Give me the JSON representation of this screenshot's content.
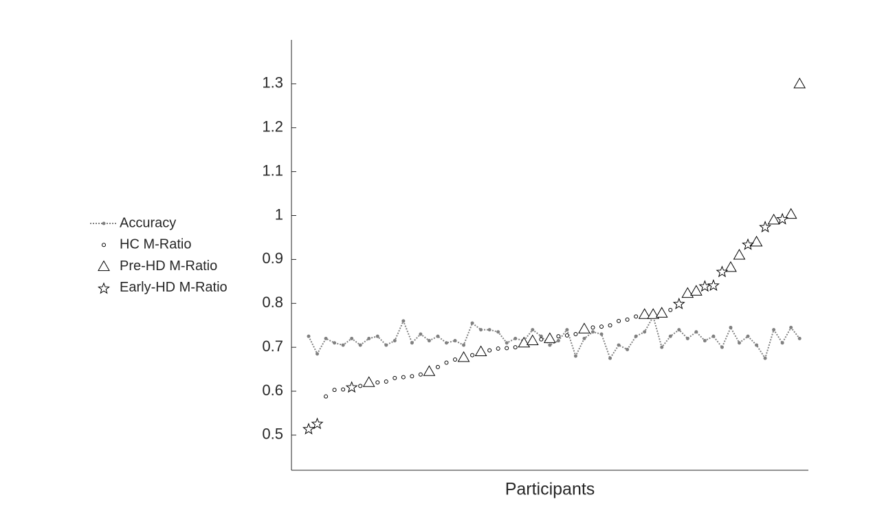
{
  "chart_data": {
    "type": "line",
    "xlabel": "Participants",
    "ylim": [
      0.42,
      1.4
    ],
    "yticks": [
      0.5,
      0.6,
      0.7,
      0.8,
      0.9,
      1,
      1.1,
      1.2,
      1.3
    ],
    "series": [
      {
        "name": "Accuracy",
        "color": "#808080",
        "marker": "dot",
        "line": "dotted",
        "values": [
          0.725,
          0.685,
          0.72,
          0.71,
          0.705,
          0.72,
          0.705,
          0.72,
          0.725,
          0.705,
          0.715,
          0.76,
          0.71,
          0.73,
          0.715,
          0.725,
          0.71,
          0.715,
          0.705,
          0.755,
          0.74,
          0.74,
          0.735,
          0.71,
          0.72,
          0.715,
          0.74,
          0.725,
          0.705,
          0.715,
          0.74,
          0.68,
          0.72,
          0.735,
          0.73,
          0.675,
          0.705,
          0.695,
          0.725,
          0.735,
          0.77,
          0.7,
          0.725,
          0.74,
          0.72,
          0.735,
          0.715,
          0.725,
          0.7,
          0.745,
          0.71,
          0.725,
          0.705,
          0.675,
          0.74,
          0.71,
          0.745,
          0.72
        ]
      },
      {
        "name": "HC M-Ratio",
        "color": "#000000",
        "marker": "circle",
        "line": "none",
        "values": [
          null,
          null,
          0.588,
          0.603,
          0.604,
          null,
          0.612,
          null,
          0.62,
          0.622,
          0.63,
          0.632,
          0.634,
          0.638,
          null,
          0.655,
          0.665,
          0.672,
          null,
          0.682,
          null,
          0.693,
          0.697,
          0.698,
          0.7,
          null,
          null,
          0.718,
          null,
          0.725,
          0.727,
          0.73,
          null,
          0.745,
          0.747,
          0.75,
          0.76,
          0.763,
          0.77,
          null,
          null,
          null,
          0.785,
          null,
          null,
          null,
          null,
          null,
          null,
          null,
          null,
          null,
          null,
          null,
          null,
          null,
          null,
          null
        ]
      },
      {
        "name": "Pre-HD M-Ratio",
        "color": "#000000",
        "marker": "triangle",
        "line": "none",
        "values": [
          null,
          null,
          null,
          null,
          null,
          null,
          null,
          0.62,
          null,
          null,
          null,
          null,
          null,
          null,
          0.645,
          null,
          null,
          null,
          0.677,
          null,
          0.69,
          null,
          null,
          null,
          null,
          0.71,
          0.715,
          null,
          0.72,
          null,
          null,
          null,
          0.742,
          null,
          null,
          null,
          null,
          null,
          null,
          0.775,
          0.775,
          0.778,
          null,
          null,
          0.823,
          0.828,
          null,
          null,
          null,
          0.882,
          0.91,
          null,
          0.94,
          null,
          0.99,
          null,
          1.003,
          1.3
        ]
      },
      {
        "name": "Early-HD M-Ratio",
        "color": "#000000",
        "marker": "star",
        "line": "none",
        "values": [
          0.515,
          0.527,
          null,
          null,
          null,
          0.61,
          null,
          null,
          null,
          null,
          null,
          null,
          null,
          null,
          null,
          null,
          null,
          null,
          null,
          null,
          null,
          null,
          null,
          null,
          null,
          null,
          null,
          null,
          null,
          null,
          null,
          null,
          null,
          null,
          null,
          null,
          null,
          null,
          null,
          null,
          null,
          null,
          null,
          0.8,
          null,
          null,
          0.84,
          0.842,
          0.873,
          null,
          null,
          0.935,
          null,
          0.975,
          null,
          0.993,
          null,
          null
        ]
      }
    ]
  }
}
